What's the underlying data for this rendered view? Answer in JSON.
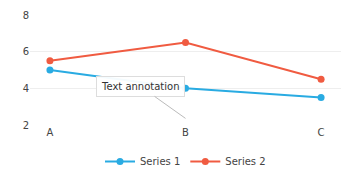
{
  "chart_data": {
    "type": "line",
    "categories": [
      "A",
      "B",
      "C"
    ],
    "series": [
      {
        "name": "Series 1",
        "color": "#29ABE2",
        "values": [
          5.0,
          4.0,
          3.5
        ],
        "marker": "circle"
      },
      {
        "name": "Series 2",
        "color": "#F05B41",
        "values": [
          5.5,
          6.5,
          4.5
        ],
        "marker": "circle"
      }
    ],
    "ylim": [
      2,
      8
    ],
    "yticks": [
      2,
      4,
      6,
      8
    ],
    "grid": true,
    "legend": "bottom",
    "annotations": [
      "Text annotation"
    ]
  }
}
